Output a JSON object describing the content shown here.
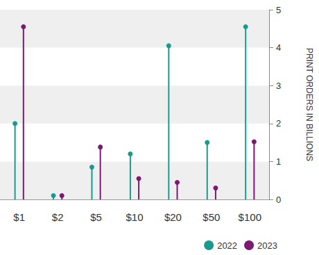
{
  "chart_data": {
    "type": "lollipop",
    "categories": [
      "$1",
      "$2",
      "$5",
      "$10",
      "$20",
      "$50",
      "$100"
    ],
    "series": [
      {
        "name": "2022",
        "color": "#1a9a8f",
        "values": [
          2.0,
          0.1,
          0.85,
          1.2,
          4.05,
          1.5,
          4.55
        ]
      },
      {
        "name": "2023",
        "color": "#7a1a72",
        "values": [
          4.55,
          0.1,
          1.38,
          0.55,
          0.45,
          0.3,
          1.52
        ]
      }
    ],
    "y_label": "PRINT ORDERS IN BILLIONS",
    "ylim": [
      0,
      5
    ],
    "yticks": [
      0,
      1,
      2,
      3,
      4,
      5
    ],
    "grid": true,
    "legend": "bottom-right"
  }
}
